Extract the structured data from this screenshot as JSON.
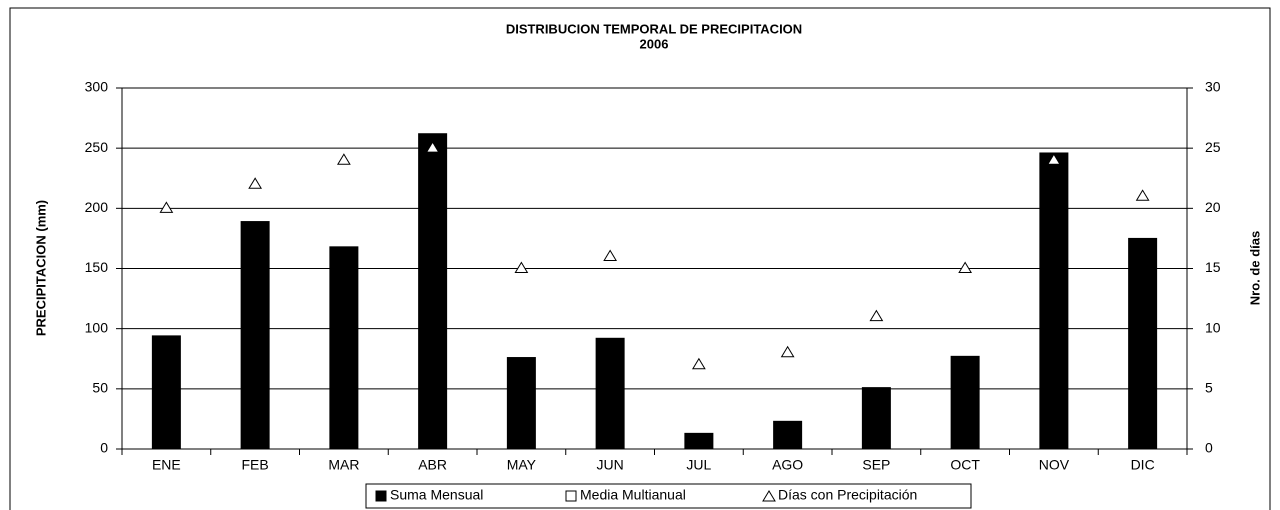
{
  "chart_data": {
    "type": "bar",
    "title": "DISTRIBUCION TEMPORAL DE PRECIPITACION",
    "subtitle": "2006",
    "ylabel": "PRECIPITACION (mm)",
    "y2label": "Nro. de días",
    "categories": [
      "ENE",
      "FEB",
      "MAR",
      "ABR",
      "MAY",
      "JUN",
      "JUL",
      "AGO",
      "SEP",
      "OCT",
      "NOV",
      "DIC"
    ],
    "series": [
      {
        "name": "Suma Mensual",
        "type": "bar",
        "color": "#000000",
        "axis": "y",
        "values": [
          94,
          189,
          168,
          262,
          76,
          92,
          13,
          23,
          51,
          77,
          246,
          175
        ]
      },
      {
        "name": "Media Multianual",
        "type": "bar",
        "color": "#ffffff",
        "axis": "y",
        "values": [
          null,
          null,
          null,
          null,
          null,
          null,
          null,
          null,
          null,
          null,
          null,
          null
        ]
      },
      {
        "name": "Días con Precipitación",
        "type": "scatter",
        "color": "#ffffff",
        "axis": "y2",
        "values": [
          20,
          22,
          24,
          25,
          15,
          16,
          7,
          8,
          11,
          15,
          24,
          21
        ]
      }
    ],
    "ylim": [
      0,
      300
    ],
    "yticks": [
      0,
      50,
      100,
      150,
      200,
      250,
      300
    ],
    "y2lim": [
      0,
      30
    ],
    "y2ticks": [
      0,
      5,
      10,
      15,
      20,
      25,
      30
    ],
    "grid": true,
    "legend": "bottom"
  }
}
